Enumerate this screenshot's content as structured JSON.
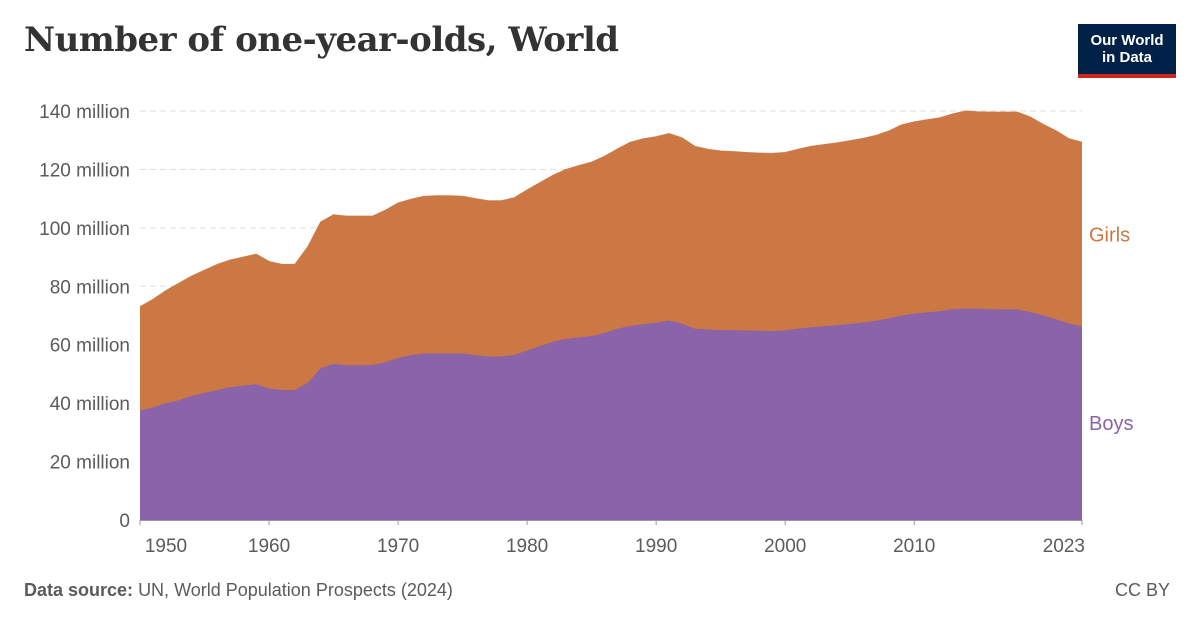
{
  "title": "Number of one-year-olds, World",
  "logo": {
    "line1": "Our World",
    "line2": "in Data",
    "bg_color": "#002147",
    "accent_color": "#ce261e"
  },
  "footer": {
    "source_label": "Data source:",
    "source_text": "UN, World Population Prospects (2024)",
    "license": "CC BY"
  },
  "chart_data": {
    "type": "area",
    "stacked": true,
    "x_ticks": [
      1950,
      1960,
      1970,
      1980,
      1990,
      2000,
      2010,
      2023
    ],
    "x_range": [
      1950,
      2023
    ],
    "ylim": [
      0,
      140
    ],
    "y_ticks": [
      {
        "value": 0,
        "label": "0"
      },
      {
        "value": 20,
        "label": "20 million"
      },
      {
        "value": 40,
        "label": "40 million"
      },
      {
        "value": 60,
        "label": "60 million"
      },
      {
        "value": 80,
        "label": "80 million"
      },
      {
        "value": 100,
        "label": "100 million"
      },
      {
        "value": 120,
        "label": "120 million"
      },
      {
        "value": 140,
        "label": "140 million"
      }
    ],
    "grid": "horizontal dashed",
    "legend": "right-inline",
    "x": [
      1950,
      1951,
      1952,
      1953,
      1954,
      1955,
      1956,
      1957,
      1958,
      1959,
      1960,
      1961,
      1962,
      1963,
      1964,
      1965,
      1966,
      1967,
      1968,
      1969,
      1970,
      1971,
      1972,
      1973,
      1974,
      1975,
      1976,
      1977,
      1978,
      1979,
      1980,
      1981,
      1982,
      1983,
      1984,
      1985,
      1986,
      1987,
      1988,
      1989,
      1990,
      1991,
      1992,
      1993,
      1994,
      1995,
      1996,
      1997,
      1998,
      1999,
      2000,
      2001,
      2002,
      2003,
      2004,
      2005,
      2006,
      2007,
      2008,
      2009,
      2010,
      2011,
      2012,
      2013,
      2014,
      2015,
      2016,
      2017,
      2018,
      2019,
      2020,
      2021,
      2022,
      2023
    ],
    "series": [
      {
        "name": "Boys",
        "color": "#8a63a8",
        "values": [
          37.5,
          38.5,
          40,
          41,
          42.5,
          43.5,
          44.5,
          45.5,
          46,
          46.5,
          45,
          44.5,
          44.5,
          47,
          52,
          53.5,
          53,
          53,
          53,
          54,
          55.5,
          56.5,
          57,
          57,
          57,
          57,
          56.5,
          56,
          56,
          56.5,
          58,
          59.5,
          61,
          62,
          62.5,
          63,
          64,
          65.5,
          66.5,
          67,
          67.5,
          68.3,
          67.2,
          65.5,
          65.2,
          65,
          65,
          64.9,
          64.8,
          64.7,
          64.9,
          65.5,
          66,
          66.3,
          66.7,
          67.1,
          67.6,
          68.2,
          69,
          70,
          70.7,
          71.1,
          71.5,
          72.2,
          72.4,
          72.3,
          72.2,
          72.1,
          72.1,
          71.2,
          70,
          68.7,
          67.2,
          66.3
        ]
      },
      {
        "name": "Girls",
        "color": "#cc7845",
        "values": [
          35.5,
          37,
          38.5,
          40,
          41,
          42,
          43,
          43.5,
          44,
          44.5,
          43.5,
          43,
          43,
          46.5,
          50,
          51,
          51,
          51,
          51,
          52,
          53,
          53.3,
          53.8,
          54,
          54,
          53.8,
          53.5,
          53.3,
          53.3,
          53.8,
          55,
          56,
          57,
          58,
          58.8,
          59.5,
          60.5,
          61.5,
          62.8,
          63.5,
          63.7,
          64,
          63.6,
          62.4,
          61.7,
          61.3,
          61.1,
          60.9,
          60.8,
          60.8,
          60.9,
          61.4,
          61.9,
          62.2,
          62.4,
          62.7,
          63,
          63.4,
          64.1,
          65.2,
          65.6,
          65.9,
          66.2,
          66.8,
          67.6,
          67.4,
          67.4,
          67.5,
          67.5,
          66.7,
          65.4,
          64.5,
          63.3,
          63
        ]
      }
    ]
  }
}
